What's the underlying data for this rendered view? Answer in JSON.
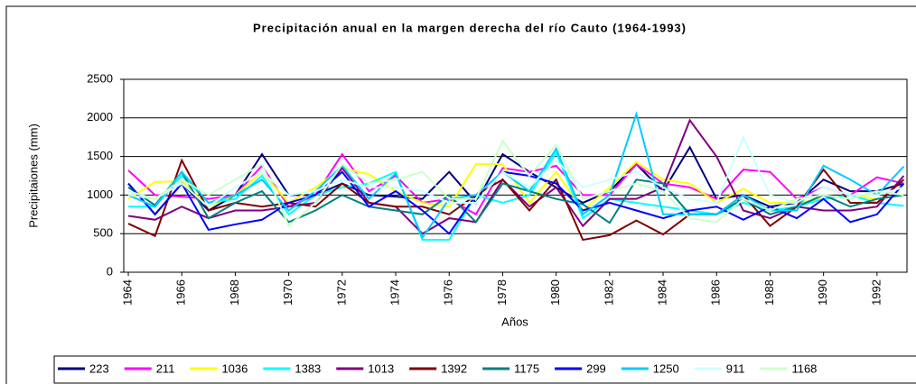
{
  "chart_data": {
    "type": "line",
    "title": "Precipitación anual en la margen derecha del río Cauto (1964-1993)",
    "x_label": "Años",
    "y_label": "Precipitaiones (mm)",
    "x": [
      1964,
      1965,
      1966,
      1967,
      1968,
      1969,
      1970,
      1971,
      1972,
      1973,
      1974,
      1975,
      1976,
      1977,
      1978,
      1979,
      1980,
      1981,
      1982,
      1983,
      1984,
      1985,
      1986,
      1987,
      1988,
      1989,
      1990,
      1991,
      1992,
      1993
    ],
    "xlim": [
      1963.83,
      1993.12
    ],
    "xticks": [
      1964,
      1966,
      1968,
      1970,
      1972,
      1974,
      1976,
      1978,
      1980,
      1982,
      1984,
      1986,
      1988,
      1990,
      1992
    ],
    "ylim": [
      0,
      2500
    ],
    "yticks": [
      0,
      500,
      1000,
      1500,
      2000,
      2500
    ],
    "grid": true,
    "legend": "bottom",
    "series": [
      {
        "name": "223",
        "color": "#000080",
        "values": [
          1150,
          750,
          1150,
          800,
          1000,
          1530,
          1000,
          1000,
          1150,
          1000,
          980,
          950,
          1300,
          900,
          1530,
          1300,
          1100,
          900,
          1050,
          1400,
          1050,
          1620,
          950,
          1000,
          850,
          900,
          1200,
          1050,
          1050,
          1150
        ]
      },
      {
        "name": "211",
        "color": "#ff00ff",
        "values": [
          1320,
          1000,
          980,
          950,
          1000,
          1380,
          850,
          1000,
          1530,
          1050,
          1250,
          900,
          950,
          750,
          1350,
          1300,
          1380,
          1000,
          1000,
          1400,
          1150,
          1100,
          950,
          1330,
          1300,
          950,
          1100,
          1000,
          1230,
          1150
        ]
      },
      {
        "name": "1036",
        "color": "#ffff00",
        "values": [
          950,
          1170,
          1180,
          850,
          1000,
          1300,
          900,
          1100,
          1350,
          1270,
          1050,
          900,
          850,
          1400,
          1400,
          900,
          1300,
          800,
          1100,
          1430,
          1200,
          1150,
          900,
          1080,
          900,
          900,
          950,
          1000,
          950,
          1000
        ]
      },
      {
        "name": "1383",
        "color": "#00ffff",
        "values": [
          850,
          850,
          1250,
          900,
          950,
          1250,
          750,
          1000,
          1100,
          1150,
          1300,
          420,
          420,
          1000,
          900,
          1000,
          1550,
          700,
          950,
          900,
          850,
          800,
          750,
          900,
          800,
          850,
          950,
          1000,
          900,
          860
        ]
      },
      {
        "name": "1013",
        "color": "#800080",
        "values": [
          730,
          680,
          850,
          700,
          800,
          800,
          850,
          900,
          1350,
          900,
          850,
          500,
          700,
          650,
          1200,
          850,
          1100,
          600,
          950,
          950,
          1100,
          1970,
          1500,
          800,
          700,
          850,
          800,
          800,
          850,
          1250
        ]
      },
      {
        "name": "1392",
        "color": "#800000",
        "values": [
          630,
          470,
          1450,
          800,
          900,
          850,
          900,
          850,
          1150,
          900,
          850,
          850,
          750,
          1000,
          1200,
          800,
          1200,
          420,
          480,
          670,
          490,
          750,
          750,
          1000,
          600,
          850,
          1330,
          900,
          900,
          1200
        ]
      },
      {
        "name": "1175",
        "color": "#008080",
        "values": [
          1100,
          870,
          1300,
          700,
          900,
          1050,
          650,
          800,
          1000,
          850,
          800,
          750,
          1000,
          650,
          1150,
          1050,
          950,
          880,
          640,
          1200,
          1150,
          750,
          750,
          950,
          750,
          850,
          1000,
          850,
          950,
          1000
        ]
      },
      {
        "name": "299",
        "color": "#0000ff",
        "values": [
          1150,
          750,
          1150,
          550,
          620,
          680,
          900,
          1000,
          1300,
          850,
          1050,
          800,
          500,
          1000,
          1300,
          1250,
          1150,
          800,
          900,
          800,
          700,
          800,
          850,
          680,
          850,
          700,
          950,
          650,
          750,
          1150
        ]
      },
      {
        "name": "1250",
        "color": "#00ccff",
        "values": [
          1000,
          850,
          1300,
          900,
          1000,
          1200,
          800,
          1050,
          1380,
          950,
          1280,
          450,
          950,
          1000,
          1300,
          1050,
          1600,
          750,
          1000,
          2050,
          750,
          750,
          750,
          1000,
          800,
          800,
          1380,
          1200,
          1000,
          1370
        ]
      },
      {
        "name": "911",
        "color": "#ccffff",
        "values": [
          1050,
          950,
          1150,
          850,
          1100,
          1300,
          1000,
          1050,
          1200,
          1100,
          1100,
          1050,
          900,
          900,
          1300,
          1100,
          1450,
          1100,
          1200,
          1300,
          1100,
          950,
          900,
          1750,
          1000,
          900,
          1100,
          1000,
          1000,
          1100
        ]
      },
      {
        "name": "1168",
        "color": "#ccffcc",
        "values": [
          1000,
          950,
          1200,
          1000,
          1200,
          1400,
          600,
          900,
          1400,
          1150,
          1200,
          1300,
          950,
          950,
          1700,
          1250,
          1650,
          950,
          1050,
          1150,
          1050,
          700,
          650,
          950,
          800,
          950,
          1000,
          950,
          1050,
          1000
        ]
      }
    ]
  }
}
